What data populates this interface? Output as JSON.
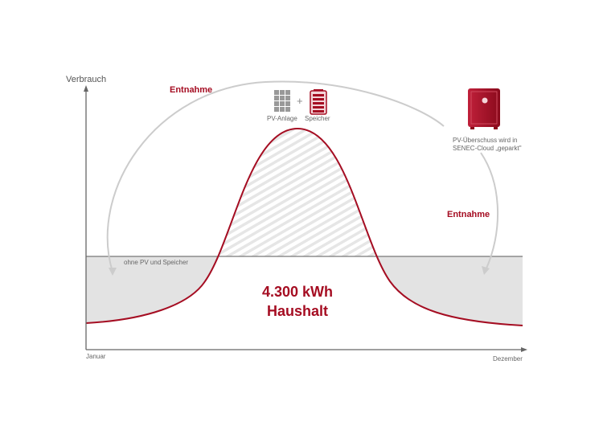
{
  "axes": {
    "y_label": "Verbrauch",
    "x_start": "Januar",
    "x_end": "Dezember"
  },
  "labels": {
    "entnahme_top": "Entnahme",
    "entnahme_right": "Entnahme",
    "pv_anlage": "PV-Anlage",
    "plus": "+",
    "speicher": "Speicher",
    "cloud_line1": "PV-Überschuss wird in",
    "cloud_line2": "SENEC-Cloud „geparkt\"",
    "baseline": "ohne PV und Speicher",
    "center_value": "4.300 kWh",
    "center_label": "Haushalt"
  },
  "icons": [
    "solar-panel-icon",
    "battery-icon",
    "safe-icon"
  ],
  "colors": {
    "accent": "#a50d22",
    "gray_fill": "#e3e3e3",
    "axis": "#666666",
    "arc": "#c8c8c8"
  }
}
